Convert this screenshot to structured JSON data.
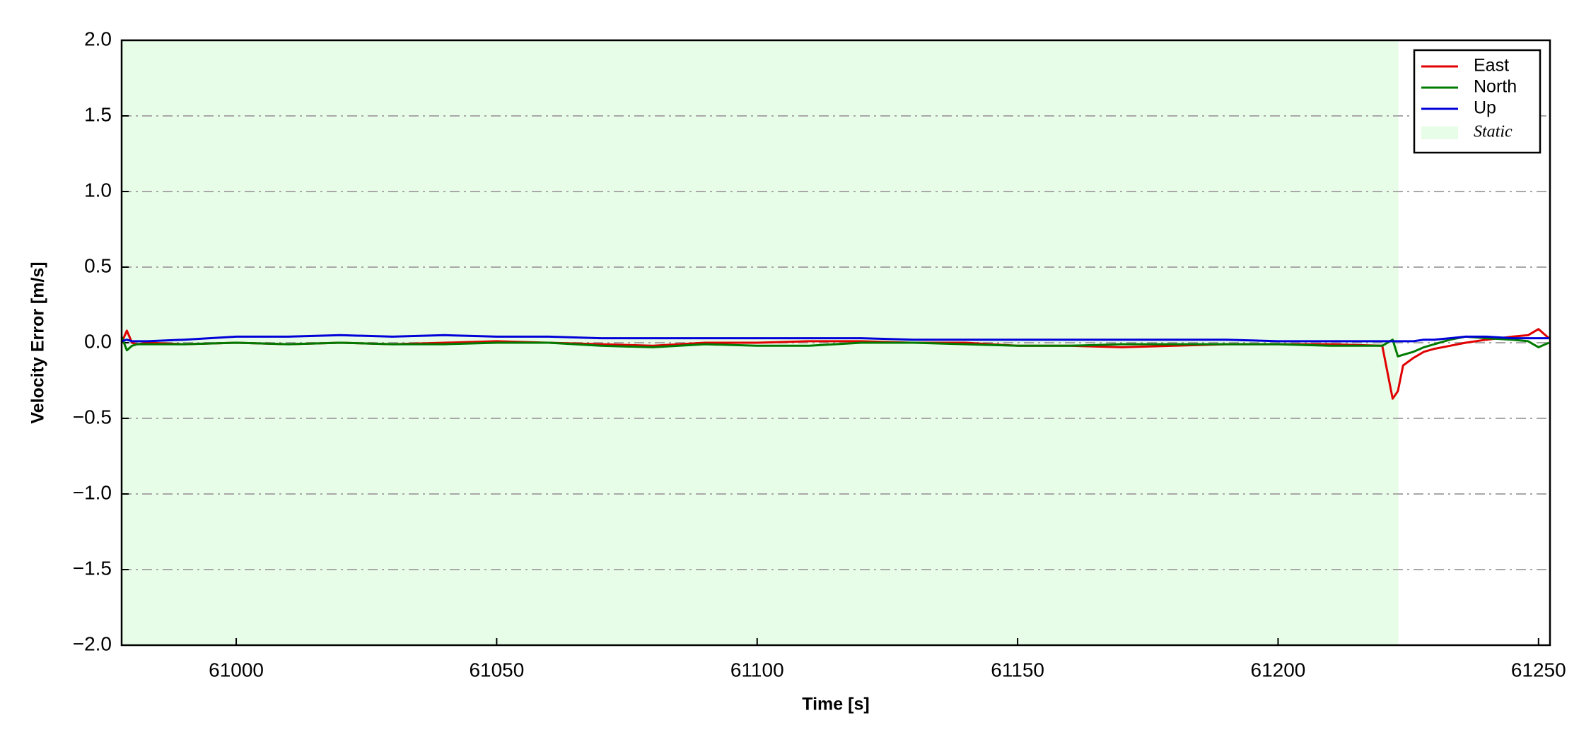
{
  "chart_data": {
    "type": "line",
    "xlabel": "Time [s]",
    "ylabel": "Velocity Error [m/s]",
    "x": [
      60978,
      60979,
      60980,
      60981,
      60983,
      60990,
      61000,
      61010,
      61020,
      61030,
      61040,
      61050,
      61060,
      61070,
      61080,
      61090,
      61100,
      61110,
      61120,
      61130,
      61140,
      61150,
      61160,
      61170,
      61180,
      61190,
      61200,
      61210,
      61220,
      61222,
      61223,
      61224,
      61226,
      61228,
      61230,
      61233,
      61236,
      61240,
      61245,
      61248,
      61250,
      61252
    ],
    "series": [
      {
        "name": "East",
        "color": "#e00000",
        "values": [
          0.0,
          0.08,
          0.0,
          -0.01,
          0.0,
          -0.01,
          0.0,
          -0.01,
          0.0,
          -0.01,
          0.0,
          0.01,
          0.0,
          -0.01,
          -0.02,
          0.0,
          0.0,
          0.01,
          0.01,
          0.0,
          0.0,
          -0.02,
          -0.02,
          -0.03,
          -0.02,
          -0.01,
          -0.01,
          -0.01,
          -0.02,
          -0.37,
          -0.32,
          -0.15,
          -0.1,
          -0.06,
          -0.04,
          -0.02,
          0.0,
          0.02,
          0.04,
          0.05,
          0.09,
          0.03
        ]
      },
      {
        "name": "North",
        "color": "#007a00",
        "values": [
          0.04,
          -0.05,
          -0.02,
          -0.01,
          -0.01,
          -0.01,
          0.0,
          -0.01,
          0.0,
          -0.01,
          -0.01,
          0.0,
          0.0,
          -0.02,
          -0.03,
          -0.01,
          -0.02,
          -0.02,
          0.0,
          0.0,
          -0.01,
          -0.02,
          -0.02,
          -0.01,
          -0.01,
          -0.01,
          -0.01,
          -0.02,
          -0.02,
          0.02,
          -0.09,
          -0.08,
          -0.06,
          -0.03,
          -0.01,
          0.02,
          0.04,
          0.03,
          0.02,
          0.01,
          -0.03,
          0.0
        ]
      },
      {
        "name": "Up",
        "color": "#0000d8",
        "values": [
          0.01,
          0.02,
          0.01,
          0.01,
          0.01,
          0.02,
          0.04,
          0.04,
          0.05,
          0.04,
          0.05,
          0.04,
          0.04,
          0.03,
          0.03,
          0.03,
          0.03,
          0.03,
          0.03,
          0.02,
          0.02,
          0.02,
          0.02,
          0.02,
          0.02,
          0.02,
          0.01,
          0.01,
          0.01,
          0.01,
          0.01,
          0.01,
          0.01,
          0.02,
          0.02,
          0.03,
          0.04,
          0.04,
          0.03,
          0.03,
          0.03,
          0.03
        ]
      }
    ],
    "shaded": {
      "name": "Static",
      "color": "#e8fde8",
      "range": [
        60978,
        61223.1
      ]
    },
    "xlim": [
      60978,
      61252.2
    ],
    "xticks": [
      61000,
      61050,
      61100,
      61150,
      61200,
      61250
    ],
    "ylim": [
      -2.0,
      2.0
    ],
    "yticks": [
      {
        "value": -2.0,
        "label": "−2.0"
      },
      {
        "value": -1.5,
        "label": "−1.5"
      },
      {
        "value": -1.0,
        "label": "−1.0"
      },
      {
        "value": -0.5,
        "label": "−0.5"
      },
      {
        "value": 0,
        "label": "0.0"
      },
      {
        "value": 0.5,
        "label": "0.5"
      },
      {
        "value": 1.0,
        "label": "1.0"
      },
      {
        "value": 1.5,
        "label": "1.5"
      },
      {
        "value": 2.0,
        "label": "2.0"
      }
    ],
    "grid": true,
    "legend": "upper right"
  }
}
